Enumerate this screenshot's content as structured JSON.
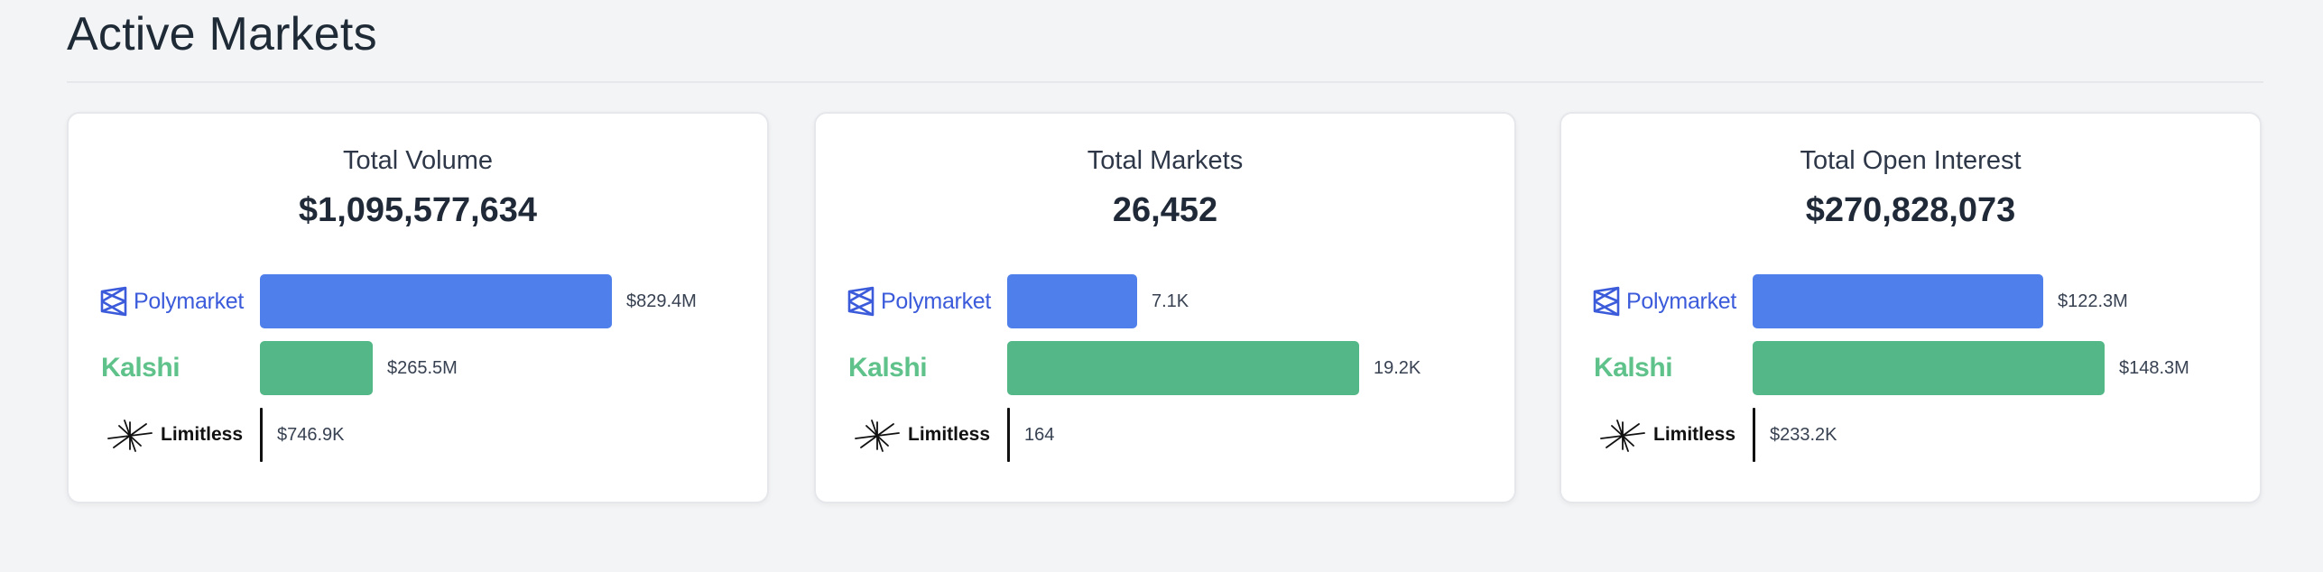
{
  "page": {
    "title": "Active Markets"
  },
  "colors": {
    "polymarket": "#4f7fea",
    "kalshi": "#54b787",
    "limitless": "#111111",
    "background": "#f3f4f6"
  },
  "platforms": {
    "polymarket": "Polymarket",
    "kalshi": "Kalshi",
    "limitless": "Limitless"
  },
  "cards": [
    {
      "title": "Total Volume",
      "value": "$1,095,577,634",
      "rows": [
        {
          "platform": "polymarket",
          "label": "$829.4M",
          "amount": 829400000
        },
        {
          "platform": "kalshi",
          "label": "$265.5M",
          "amount": 265500000
        },
        {
          "platform": "limitless",
          "label": "$746.9K",
          "amount": 746900
        }
      ]
    },
    {
      "title": "Total Markets",
      "value": "26,452",
      "rows": [
        {
          "platform": "polymarket",
          "label": "7.1K",
          "amount": 7100
        },
        {
          "platform": "kalshi",
          "label": "19.2K",
          "amount": 19200
        },
        {
          "platform": "limitless",
          "label": "164",
          "amount": 164
        }
      ]
    },
    {
      "title": "Total Open Interest",
      "value": "$270,828,073",
      "rows": [
        {
          "platform": "polymarket",
          "label": "$122.3M",
          "amount": 122300000
        },
        {
          "platform": "kalshi",
          "label": "$148.3M",
          "amount": 148300000
        },
        {
          "platform": "limitless",
          "label": "$233.2K",
          "amount": 233200
        }
      ]
    }
  ]
}
